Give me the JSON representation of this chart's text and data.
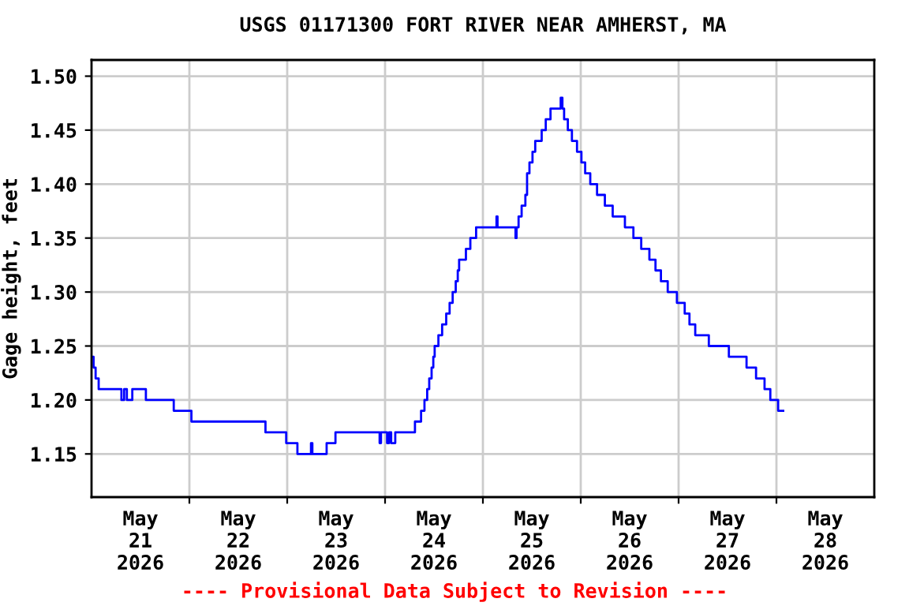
{
  "chart_data": {
    "type": "step",
    "title": "USGS 01171300 FORT RIVER NEAR AMHERST, MA",
    "ylabel": "Gage height, feet",
    "annotations": [
      "---- Provisional Data Subject to Revision ----"
    ],
    "x": [
      "2026-05-21T00:00",
      "2026-05-21T00:30",
      "2026-05-21T01:00",
      "2026-05-21T01:45",
      "2026-05-21T07:20",
      "2026-05-21T08:00",
      "2026-05-21T08:40",
      "2026-05-21T10:00",
      "2026-05-21T13:20",
      "2026-05-21T20:10",
      "2026-05-22T00:30",
      "2026-05-22T18:40",
      "2026-05-22T23:45",
      "2026-05-23T02:30",
      "2026-05-23T05:50",
      "2026-05-23T06:10",
      "2026-05-23T09:40",
      "2026-05-23T11:50",
      "2026-05-23T22:40",
      "2026-05-23T23:00",
      "2026-05-24T00:30",
      "2026-05-24T01:00",
      "2026-05-24T01:30",
      "2026-05-24T02:30",
      "2026-05-24T07:20",
      "2026-05-24T08:50",
      "2026-05-24T09:40",
      "2026-05-24T10:20",
      "2026-05-24T10:50",
      "2026-05-24T11:25",
      "2026-05-24T11:50",
      "2026-05-24T12:10",
      "2026-05-24T13:05",
      "2026-05-24T14:00",
      "2026-05-24T15:00",
      "2026-05-24T15:50",
      "2026-05-24T16:35",
      "2026-05-24T17:20",
      "2026-05-24T17:50",
      "2026-05-24T18:10",
      "2026-05-24T19:50",
      "2026-05-24T20:55",
      "2026-05-24T22:20",
      "2026-05-25T03:20",
      "2026-05-25T03:35",
      "2026-05-25T08:00",
      "2026-05-25T08:15",
      "2026-05-25T08:45",
      "2026-05-25T09:30",
      "2026-05-25T10:25",
      "2026-05-25T10:50",
      "2026-05-25T11:25",
      "2026-05-25T12:10",
      "2026-05-25T12:50",
      "2026-05-25T14:25",
      "2026-05-25T15:25",
      "2026-05-25T16:35",
      "2026-05-25T19:05",
      "2026-05-25T19:30",
      "2026-05-25T19:55",
      "2026-05-25T20:50",
      "2026-05-25T21:50",
      "2026-05-25T23:05",
      "2026-05-26T00:10",
      "2026-05-26T01:05",
      "2026-05-26T02:20",
      "2026-05-26T04:00",
      "2026-05-26T05:55",
      "2026-05-26T07:50",
      "2026-05-26T10:50",
      "2026-05-26T12:55",
      "2026-05-26T14:50",
      "2026-05-26T16:50",
      "2026-05-26T18:20",
      "2026-05-26T19:40",
      "2026-05-26T21:20",
      "2026-05-26T23:35",
      "2026-05-27T01:30",
      "2026-05-27T02:40",
      "2026-05-27T04:05",
      "2026-05-27T07:25",
      "2026-05-27T12:20",
      "2026-05-27T16:40",
      "2026-05-27T19:00",
      "2026-05-27T21:05",
      "2026-05-27T22:30",
      "2026-05-28T00:25",
      "2026-05-28T01:40"
    ],
    "series": [
      {
        "color": "#0000ff",
        "values": [
          1.24,
          1.23,
          1.22,
          1.21,
          1.2,
          1.21,
          1.2,
          1.21,
          1.2,
          1.19,
          1.18,
          1.17,
          1.16,
          1.15,
          1.16,
          1.15,
          1.16,
          1.17,
          1.16,
          1.17,
          1.16,
          1.17,
          1.16,
          1.17,
          1.18,
          1.19,
          1.2,
          1.21,
          1.22,
          1.23,
          1.24,
          1.25,
          1.26,
          1.27,
          1.28,
          1.29,
          1.3,
          1.31,
          1.32,
          1.33,
          1.34,
          1.35,
          1.36,
          1.37,
          1.36,
          1.35,
          1.36,
          1.37,
          1.38,
          1.39,
          1.41,
          1.42,
          1.43,
          1.44,
          1.45,
          1.46,
          1.47,
          1.48,
          1.47,
          1.46,
          1.45,
          1.44,
          1.43,
          1.42,
          1.41,
          1.4,
          1.39,
          1.38,
          1.37,
          1.36,
          1.35,
          1.34,
          1.33,
          1.32,
          1.31,
          1.3,
          1.29,
          1.28,
          1.27,
          1.26,
          1.25,
          1.24,
          1.23,
          1.22,
          1.21,
          1.2,
          1.19,
          1.19
        ]
      }
    ],
    "xlim": [
      "2026-05-21T00:00",
      "2026-05-29T00:00"
    ],
    "xticks": [
      {
        "value": "2026-05-21T12:00",
        "label": "May\n21\n2026"
      },
      {
        "value": "2026-05-22T12:00",
        "label": "May\n22\n2026"
      },
      {
        "value": "2026-05-23T12:00",
        "label": "May\n23\n2026"
      },
      {
        "value": "2026-05-24T12:00",
        "label": "May\n24\n2026"
      },
      {
        "value": "2026-05-25T12:00",
        "label": "May\n25\n2026"
      },
      {
        "value": "2026-05-26T12:00",
        "label": "May\n26\n2026"
      },
      {
        "value": "2026-05-27T12:00",
        "label": "May\n27\n2026"
      },
      {
        "value": "2026-05-28T12:00",
        "label": "May\n28\n2026"
      },
      {
        "value": "2026-05-22T00:00",
        "label": null
      },
      {
        "value": "2026-05-23T00:00",
        "label": null
      },
      {
        "value": "2026-05-24T00:00",
        "label": null
      },
      {
        "value": "2026-05-25T00:00",
        "label": null
      },
      {
        "value": "2026-05-26T00:00",
        "label": null
      },
      {
        "value": "2026-05-27T00:00",
        "label": null
      },
      {
        "value": "2026-05-28T00:00",
        "label": null
      }
    ],
    "ylim": [
      1.11,
      1.515
    ],
    "yticks": [
      {
        "value": 1.15,
        "label": "1.15"
      },
      {
        "value": 1.2,
        "label": "1.20"
      },
      {
        "value": 1.25,
        "label": "1.25"
      },
      {
        "value": 1.3,
        "label": "1.30"
      },
      {
        "value": 1.35,
        "label": "1.35"
      },
      {
        "value": 1.4,
        "label": "1.40"
      },
      {
        "value": 1.45,
        "label": "1.45"
      },
      {
        "value": 1.5,
        "label": "1.50"
      }
    ],
    "grid": true,
    "legend": false
  }
}
